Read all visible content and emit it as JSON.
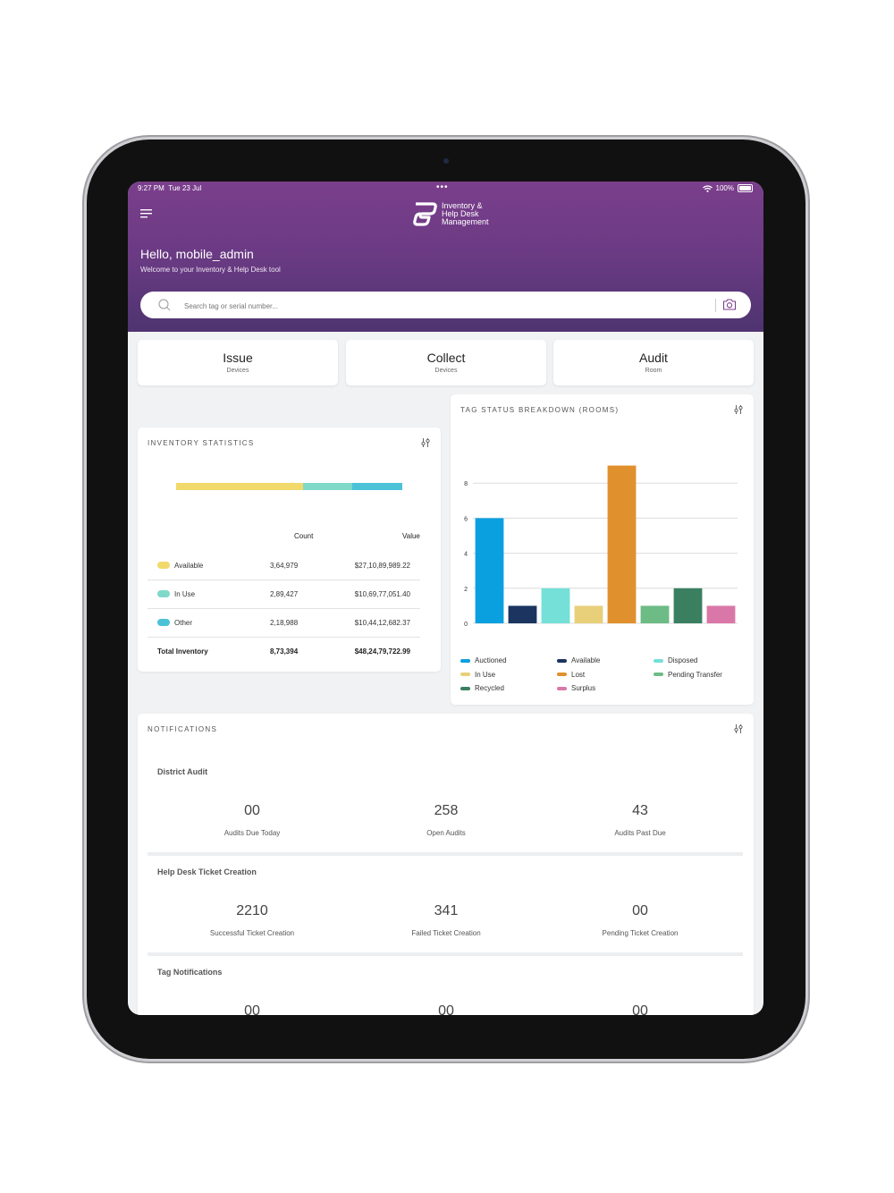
{
  "status_bar": {
    "time": "9:27 PM",
    "date": "Tue 23 Jul",
    "battery": "100%"
  },
  "app": {
    "logo_lines": [
      "Inventory &",
      "Help Desk",
      "Management"
    ]
  },
  "greeting": {
    "title": "Hello, mobile_admin",
    "subtitle": "Welcome to your Inventory & Help Desk tool"
  },
  "search": {
    "placeholder": "Search tag or serial number..."
  },
  "actions": [
    {
      "title": "Issue",
      "subtitle": "Devices"
    },
    {
      "title": "Collect",
      "subtitle": "Devices"
    },
    {
      "title": "Audit",
      "subtitle": "Room"
    }
  ],
  "inventory": {
    "title": "INVENTORY STATISTICS",
    "headers": {
      "count": "Count",
      "value": "Value"
    },
    "rows": [
      {
        "label": "Available",
        "count": "3,64,979",
        "value": "$27,10,89,989.22",
        "color": "#f2d96b"
      },
      {
        "label": "In Use",
        "count": "2,89,427",
        "value": "$10,69,77,051.40",
        "color": "#7fd9c8"
      },
      {
        "label": "Other",
        "count": "2,18,988",
        "value": "$10,44,12,682.37",
        "color": "#4bc2d8"
      }
    ],
    "total": {
      "label": "Total Inventory",
      "count": "8,73,394",
      "value": "$48,24,79,722.99"
    },
    "bar_segments": [
      {
        "label": "Available",
        "color": "#f2d96b",
        "share": 0.56
      },
      {
        "label": "In Use",
        "color": "#7fd9c8",
        "share": 0.22
      },
      {
        "label": "Other",
        "color": "#4bc2d8",
        "share": 0.22
      }
    ]
  },
  "tag_status": {
    "title": "TAG STATUS BREAKDOWN (ROOMS)"
  },
  "chart_data": {
    "type": "bar",
    "title": "TAG STATUS BREAKDOWN (ROOMS)",
    "categories": [
      "Auctioned",
      "Available",
      "Disposed",
      "In Use",
      "Lost",
      "Pending Transfer",
      "Recycled",
      "Surplus"
    ],
    "values": [
      6,
      1,
      2,
      1,
      9,
      1,
      2,
      1
    ],
    "colors": [
      "#0aa0e0",
      "#1b3560",
      "#74e0d8",
      "#e8cf7a",
      "#e0902c",
      "#6dbb85",
      "#3a8060",
      "#d978a8"
    ],
    "yticks": [
      "0",
      "2",
      "4",
      "6",
      "8"
    ],
    "ylim": [
      0,
      10
    ],
    "grid": true,
    "legend_position": "bottom"
  },
  "notifications": {
    "title": "NOTIFICATIONS",
    "sections": [
      {
        "title": "District Audit",
        "metrics": [
          {
            "value": "00",
            "label": "Audits Due Today"
          },
          {
            "value": "258",
            "label": "Open Audits"
          },
          {
            "value": "43",
            "label": "Audits Past Due"
          }
        ]
      },
      {
        "title": "Help Desk Ticket Creation",
        "metrics": [
          {
            "value": "2210",
            "label": "Successful Ticket Creation"
          },
          {
            "value": "341",
            "label": "Failed Ticket Creation"
          },
          {
            "value": "00",
            "label": "Pending Ticket Creation"
          }
        ]
      },
      {
        "title": "Tag Notifications",
        "metrics": [
          {
            "value": "00",
            "label": ""
          },
          {
            "value": "00",
            "label": ""
          },
          {
            "value": "00",
            "label": ""
          }
        ]
      }
    ]
  },
  "icons": [
    "menu-icon",
    "search-icon",
    "camera-icon",
    "filter-icon",
    "wifi-icon",
    "battery-icon"
  ]
}
